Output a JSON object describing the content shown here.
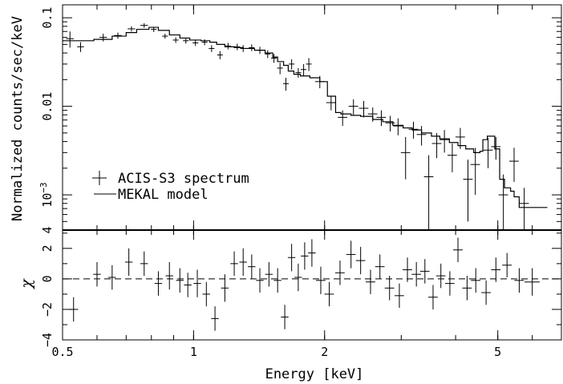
{
  "chart_data": [
    {
      "type": "scatter",
      "xscale": "log",
      "yscale": "log",
      "xlim": [
        0.5,
        7.0
      ],
      "ylim": [
        0.0004,
        0.14
      ],
      "ylabel": "Normalized counts/sec/keV",
      "yticks": [
        {
          "value": 0.1,
          "label": "0.1"
        },
        {
          "value": 0.01,
          "label": "0.01"
        },
        {
          "value": 0.001,
          "label": "10",
          "sup": "−3"
        },
        {
          "value": 0.0004,
          "label": "4",
          "sup": "",
          "edge": true
        }
      ],
      "legend": {
        "placement": "bottom-left",
        "entries": [
          {
            "label": "ACIS-S3 spectrum",
            "marker": "cross"
          },
          {
            "label": "MEKAL model",
            "marker": "line"
          }
        ]
      },
      "series": [
        {
          "name": "ACIS-S3 spectrum",
          "style": "crosses",
          "points": [
            [
              0.52,
              0.058,
              0.02,
              0.012
            ],
            [
              0.55,
              0.047,
              0.018,
              0.006
            ],
            [
              0.62,
              0.06,
              0.02,
              0.006
            ],
            [
              0.67,
              0.063,
              0.02,
              0.005
            ],
            [
              0.72,
              0.075,
              0.02,
              0.005
            ],
            [
              0.77,
              0.082,
              0.02,
              0.005
            ],
            [
              0.81,
              0.074,
              0.015,
              0.005
            ],
            [
              0.86,
              0.062,
              0.015,
              0.004
            ],
            [
              0.91,
              0.056,
              0.015,
              0.004
            ],
            [
              0.96,
              0.055,
              0.015,
              0.004
            ],
            [
              1.01,
              0.052,
              0.015,
              0.004
            ],
            [
              1.06,
              0.053,
              0.015,
              0.004
            ],
            [
              1.1,
              0.045,
              0.015,
              0.004
            ],
            [
              1.15,
              0.038,
              0.015,
              0.004
            ],
            [
              1.2,
              0.048,
              0.015,
              0.004
            ],
            [
              1.26,
              0.047,
              0.015,
              0.004
            ],
            [
              1.3,
              0.045,
              0.015,
              0.004
            ],
            [
              1.36,
              0.046,
              0.015,
              0.004
            ],
            [
              1.42,
              0.043,
              0.015,
              0.004
            ],
            [
              1.48,
              0.039,
              0.015,
              0.004
            ],
            [
              1.53,
              0.035,
              0.015,
              0.004
            ],
            [
              1.58,
              0.027,
              0.015,
              0.004
            ],
            [
              1.63,
              0.018,
              0.015,
              0.003
            ],
            [
              1.68,
              0.03,
              0.015,
              0.004
            ],
            [
              1.74,
              0.024,
              0.015,
              0.003
            ],
            [
              1.79,
              0.026,
              0.015,
              0.004
            ],
            [
              1.84,
              0.03,
              0.015,
              0.005
            ],
            [
              1.95,
              0.019,
              0.025,
              0.003
            ],
            [
              2.07,
              0.011,
              0.025,
              0.002
            ],
            [
              2.2,
              0.0075,
              0.025,
              0.0015
            ],
            [
              2.33,
              0.01,
              0.025,
              0.002
            ],
            [
              2.46,
              0.0095,
              0.025,
              0.002
            ],
            [
              2.58,
              0.0082,
              0.025,
              0.0015
            ],
            [
              2.7,
              0.0075,
              0.025,
              0.0015
            ],
            [
              2.83,
              0.0065,
              0.025,
              0.0013
            ],
            [
              2.95,
              0.006,
              0.025,
              0.0013
            ],
            [
              3.07,
              0.003,
              0.025,
              0.0015
            ],
            [
              3.2,
              0.0055,
              0.025,
              0.0012
            ],
            [
              3.34,
              0.0048,
              0.025,
              0.0012
            ],
            [
              3.47,
              0.0016,
              0.025,
              0.0012
            ],
            [
              3.62,
              0.0038,
              0.025,
              0.0012
            ],
            [
              3.77,
              0.0042,
              0.025,
              0.0012
            ],
            [
              3.93,
              0.0028,
              0.025,
              0.001
            ],
            [
              4.1,
              0.0045,
              0.025,
              0.0012
            ],
            [
              4.27,
              0.0015,
              0.025,
              0.001
            ],
            [
              4.44,
              0.0022,
              0.025,
              0.0012
            ],
            [
              4.75,
              0.0032,
              0.025,
              0.0012
            ],
            [
              4.95,
              0.0035,
              0.025,
              0.001
            ],
            [
              5.15,
              0.001,
              0.025,
              0.0007
            ],
            [
              5.45,
              0.0024,
              0.025,
              0.001
            ],
            [
              5.75,
              0.0008,
              0.025,
              0.0004
            ]
          ]
        },
        {
          "name": "MEKAL model",
          "style": "step",
          "bins": [
            [
              0.5,
              0.055
            ],
            [
              0.59,
              0.057
            ],
            [
              0.65,
              0.062
            ],
            [
              0.7,
              0.068
            ],
            [
              0.74,
              0.074
            ],
            [
              0.79,
              0.078
            ],
            [
              0.83,
              0.072
            ],
            [
              0.88,
              0.064
            ],
            [
              0.93,
              0.059
            ],
            [
              0.98,
              0.056
            ],
            [
              1.04,
              0.055
            ],
            [
              1.09,
              0.053
            ],
            [
              1.13,
              0.05
            ],
            [
              1.18,
              0.047
            ],
            [
              1.24,
              0.046
            ],
            [
              1.3,
              0.045
            ],
            [
              1.38,
              0.043
            ],
            [
              1.46,
              0.04
            ],
            [
              1.52,
              0.036
            ],
            [
              1.56,
              0.032
            ],
            [
              1.61,
              0.029
            ],
            [
              1.65,
              0.025
            ],
            [
              1.7,
              0.023
            ],
            [
              1.76,
              0.022
            ],
            [
              1.85,
              0.021
            ],
            [
              1.95,
              0.019
            ],
            [
              2.03,
              0.013
            ],
            [
              2.12,
              0.0085
            ],
            [
              2.18,
              0.0082
            ],
            [
              2.3,
              0.0079
            ],
            [
              2.42,
              0.0077
            ],
            [
              2.58,
              0.0071
            ],
            [
              2.72,
              0.0067
            ],
            [
              2.87,
              0.0061
            ],
            [
              3.03,
              0.0057
            ],
            [
              3.18,
              0.0054
            ],
            [
              3.34,
              0.005
            ],
            [
              3.52,
              0.0046
            ],
            [
              3.68,
              0.0043
            ],
            [
              3.87,
              0.0039
            ],
            [
              4.05,
              0.0036
            ],
            [
              4.22,
              0.0033
            ],
            [
              4.4,
              0.003
            ],
            [
              4.55,
              0.0031
            ],
            [
              4.62,
              0.0042
            ],
            [
              4.73,
              0.0046
            ],
            [
              4.92,
              0.0033
            ],
            [
              5.05,
              0.0015
            ],
            [
              5.18,
              0.0012
            ],
            [
              5.35,
              0.0011
            ],
            [
              5.45,
              0.00095
            ],
            [
              5.6,
              0.00072
            ],
            [
              5.77,
              0.00072
            ],
            [
              6.5,
              0.00072
            ]
          ]
        }
      ]
    },
    {
      "type": "scatter",
      "xscale": "log",
      "xlim": [
        0.5,
        7.0
      ],
      "ylim": [
        -4,
        3.2
      ],
      "xlabel": "Energy [keV]",
      "ylabel": "χ",
      "xticks": [
        {
          "value": 0.5,
          "label": "0.5"
        },
        {
          "value": 1,
          "label": "1"
        },
        {
          "value": 2,
          "label": "2"
        },
        {
          "value": 5,
          "label": "5"
        }
      ],
      "yticks": [
        {
          "value": 2,
          "label": "2"
        },
        {
          "value": 0,
          "label": "0"
        },
        {
          "value": -2,
          "label": "−2"
        },
        {
          "value": -4,
          "label": "−4"
        }
      ],
      "reference_line": 0,
      "series": [
        {
          "name": "residuals",
          "style": "crosses",
          "points": [
            [
              0.53,
              -2.0,
              0.025,
              0.8
            ],
            [
              0.6,
              0.3,
              0.02,
              0.8
            ],
            [
              0.65,
              0.1,
              0.02,
              0.8
            ],
            [
              0.71,
              1.1,
              0.02,
              0.9
            ],
            [
              0.77,
              1.0,
              0.02,
              0.8
            ],
            [
              0.83,
              -0.3,
              0.02,
              0.8
            ],
            [
              0.88,
              0.2,
              0.02,
              0.9
            ],
            [
              0.93,
              -0.1,
              0.02,
              0.8
            ],
            [
              0.97,
              -0.4,
              0.02,
              0.8
            ],
            [
              1.02,
              -0.3,
              0.02,
              0.9
            ],
            [
              1.07,
              -1.0,
              0.02,
              0.8
            ],
            [
              1.12,
              -2.6,
              0.02,
              0.8
            ],
            [
              1.18,
              -0.6,
              0.02,
              0.9
            ],
            [
              1.24,
              1.0,
              0.02,
              0.8
            ],
            [
              1.3,
              1.1,
              0.02,
              0.9
            ],
            [
              1.36,
              0.8,
              0.02,
              0.8
            ],
            [
              1.42,
              -0.1,
              0.02,
              0.8
            ],
            [
              1.49,
              0.3,
              0.02,
              0.8
            ],
            [
              1.56,
              -0.1,
              0.02,
              0.8
            ],
            [
              1.62,
              -2.5,
              0.02,
              0.8
            ],
            [
              1.68,
              1.4,
              0.02,
              0.9
            ],
            [
              1.74,
              0.1,
              0.02,
              0.9
            ],
            [
              1.8,
              1.5,
              0.02,
              0.9
            ],
            [
              1.87,
              1.7,
              0.02,
              0.9
            ],
            [
              1.96,
              -0.1,
              0.025,
              0.9
            ],
            [
              2.05,
              -1.0,
              0.025,
              0.8
            ],
            [
              2.17,
              0.4,
              0.025,
              0.8
            ],
            [
              2.3,
              1.6,
              0.025,
              0.9
            ],
            [
              2.42,
              1.2,
              0.025,
              0.9
            ],
            [
              2.55,
              -0.2,
              0.025,
              0.8
            ],
            [
              2.68,
              0.8,
              0.025,
              0.8
            ],
            [
              2.82,
              -0.6,
              0.025,
              0.8
            ],
            [
              2.97,
              -1.1,
              0.025,
              0.8
            ],
            [
              3.1,
              0.6,
              0.025,
              0.8
            ],
            [
              3.25,
              0.3,
              0.025,
              0.8
            ],
            [
              3.4,
              0.5,
              0.025,
              0.8
            ],
            [
              3.55,
              -1.2,
              0.025,
              0.8
            ],
            [
              3.7,
              0.2,
              0.025,
              0.8
            ],
            [
              3.88,
              -0.3,
              0.025,
              0.8
            ],
            [
              4.05,
              1.9,
              0.025,
              0.8
            ],
            [
              4.25,
              -0.6,
              0.025,
              0.8
            ],
            [
              4.45,
              -0.1,
              0.025,
              0.8
            ],
            [
              4.7,
              -0.9,
              0.025,
              0.8
            ],
            [
              4.95,
              0.6,
              0.025,
              0.8
            ],
            [
              5.25,
              0.9,
              0.025,
              0.8
            ],
            [
              5.6,
              -0.1,
              0.025,
              0.8
            ],
            [
              6.0,
              -0.2,
              0.04,
              0.9
            ]
          ]
        }
      ]
    }
  ]
}
